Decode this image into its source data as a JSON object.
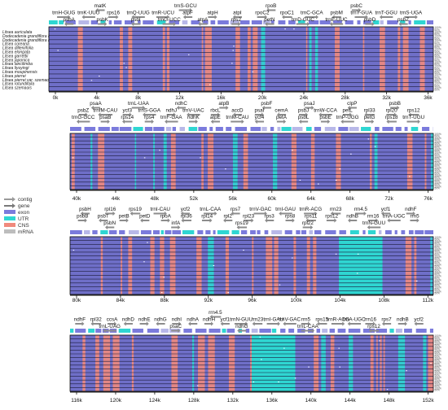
{
  "species": [
    "Litsea auriculata",
    "Dodecadenia grandiflora I",
    "Dodecadenia grandiflora II",
    "Litsea coreana",
    "Litsea dilleniifolia",
    "Litsea elongata",
    "Litsea garrettii",
    "Litsea japonica",
    "Litsea lancilimba",
    "Litsea liyuyingi",
    "Litsea moupinensis",
    "Litsea pierrei",
    "Litsea pierrei var. szemaois",
    "Litsea rotundifolia",
    "Litsea szemaois"
  ],
  "legend": [
    {
      "label": "contig",
      "color": "#9a9a9a"
    },
    {
      "label": "gene",
      "color": "#7a7a7a"
    },
    {
      "label": "exon",
      "color": "#7b7bdc"
    },
    {
      "label": "UTR",
      "color": "#2fd6d2"
    },
    {
      "label": "CNS",
      "color": "#f08a7d"
    },
    {
      "label": "mRNA",
      "color": "#bdbdbd"
    }
  ],
  "colors": {
    "conserved": "#6f6fc8",
    "cns": "#f08a7d",
    "utr": "#2fd6d2",
    "exon": "#7b7bdc",
    "arrow": "#8c8c8c",
    "axis": "#111111"
  },
  "percent_labels": [
    "100%",
    "50%"
  ],
  "panels": [
    {
      "ticks": [
        "0k",
        "4k",
        "8k",
        "12k",
        "16k",
        "20k",
        "24k",
        "28k",
        "32k",
        "36k"
      ],
      "genes_top": [
        "matK",
        "trnS-GCU",
        "rpoB",
        "psbC"
      ],
      "genes_row2": [
        "trnH-GUG",
        "trnK-UUU",
        "rps16",
        "trnQ-UUG",
        "trnR-UCU",
        "atpF",
        "atpH",
        "atpI",
        "rpoC2",
        "rpoC1",
        "trnC-GCA",
        "psbM",
        "trnY-GUA",
        "trnT-GGU",
        "trnS-UGA"
      ],
      "genes_row3": [
        "psbA",
        "psbK",
        "psbI",
        "trnG-UCC",
        "atpA",
        "rps2",
        "petN",
        "trnD-GUC",
        "trnE-UUC",
        "psbD",
        "psbZ"
      ]
    },
    {
      "ticks": [
        "40k",
        "44k",
        "48k",
        "52k",
        "56k",
        "60k",
        "64k",
        "68k",
        "72k",
        "76k"
      ],
      "genes_top": [
        "psaA",
        "trnL-UAA",
        "ndhC",
        "atpB",
        "psbF",
        "psaJ",
        "clpP",
        "psbB"
      ],
      "genes_row2": [
        "psbZ",
        "trnfM-CAU",
        "ycf3",
        "trnS-GGA",
        "ndhJ",
        "trnV-UAC",
        "rbcL",
        "accD",
        "psaI",
        "cemA",
        "psbJ",
        "trnW-CCA",
        "petL",
        "rpl33",
        "rpl20",
        "rps12"
      ],
      "genes_row3": [
        "trnG-GCC",
        "psaB",
        "rps14",
        "rps4",
        "trnF-GAA",
        "ndhK",
        "atpE",
        "trnM-CAU",
        "ycf4",
        "petA",
        "psbL",
        "psbE",
        "trnP-UGG",
        "petG",
        "rps18",
        "trnT-UGU"
      ]
    },
    {
      "ticks": [
        "80k",
        "84k",
        "88k",
        "92k",
        "96k",
        "100k",
        "104k",
        "108k",
        "112k"
      ],
      "genes_top": [
        "psbH",
        "rpl16",
        "rps19",
        "trnI-CAU",
        "ycf2",
        "trnL-CAA",
        "rps7",
        "trnV-GAC",
        "trnI-GAU",
        "trnR-ACG",
        "rrn23",
        "rrn4.5",
        "ycf1",
        "ndhF"
      ],
      "genes_row2": [
        "psbB",
        "psbT",
        "petB",
        "petD",
        "rpoA",
        "rpl36",
        "rpl14",
        "rpl2",
        "rpl23",
        "rps3",
        "rps8",
        "rps11",
        "rps12",
        "ndhB",
        "rrn16",
        "trnA-UGC",
        "rrn5"
      ],
      "genes_row3": [
        "psbN",
        "infA",
        "rps19",
        "rpl22",
        "trnN-GUU"
      ]
    },
    {
      "ticks": [
        "116k",
        "120k",
        "124k",
        "128k",
        "132k",
        "136k",
        "140k",
        "144k",
        "148k",
        "152k"
      ],
      "genes_top": [
        "rrn4.5"
      ],
      "genes_row2": [
        "ndhF",
        "rpl32",
        "ccsA",
        "ndhD",
        "ndhE",
        "ndhG",
        "ndhI",
        "ndhA",
        "ndhH",
        "ycf1",
        "trnN-GUU",
        "rrn23",
        "trnI-GAU",
        "trnV-GAC",
        "rrn5",
        "rps15",
        "trnR-ACG",
        "trnA-UGC",
        "rrn16",
        "rps7",
        "ndhB",
        "ycf2"
      ],
      "genes_row3": [
        "trnL-UAG",
        "psaC",
        "ndhG",
        "trnL-CAA",
        "rps12"
      ]
    }
  ]
}
